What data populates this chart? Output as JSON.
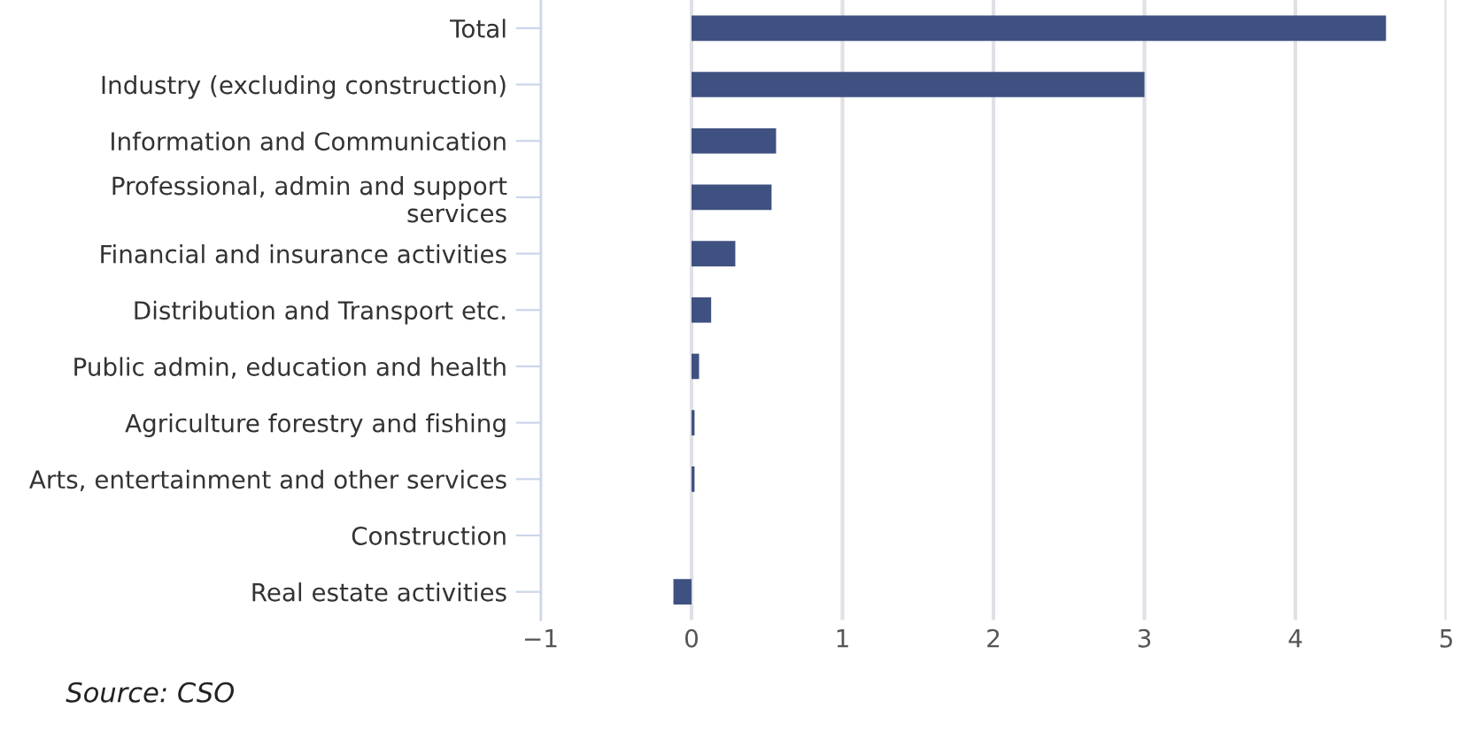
{
  "chart_data": {
    "type": "bar",
    "orientation": "horizontal",
    "categories": [
      "Total",
      "Industry (excluding construction)",
      "Information and Communication",
      "Professional, admin and support\nservices",
      "Financial and insurance activities",
      "Distribution and Transport etc.",
      "Public admin, education and health",
      "Agriculture forestry and fishing",
      "Arts, entertainment and other services",
      "Construction",
      "Real estate activities"
    ],
    "values": [
      4.6,
      3.0,
      0.56,
      0.53,
      0.29,
      0.13,
      0.05,
      0.02,
      0.02,
      0,
      -0.12
    ],
    "color": "#3f5180",
    "xlim": [
      -1,
      5
    ],
    "xticks": [
      {
        "value": -1,
        "label": "−1"
      },
      0,
      1,
      2,
      3,
      4,
      5
    ],
    "grid": "x",
    "annotations": [
      "Source: CSO"
    ]
  }
}
